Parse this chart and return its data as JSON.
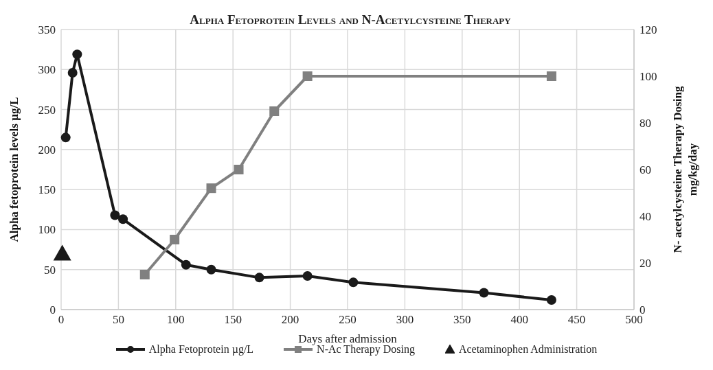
{
  "chart_data": {
    "type": "line",
    "title": "Alpha Fetoprotein Levels and N-Acetylcysteine Therapy",
    "xlabel": "Days after admission",
    "ylabel": "Alpha fetoprotein levels µg/L",
    "y2label": "N- acetylcysteine Therapy Dosing mg/kg/day",
    "xlim": [
      0,
      500
    ],
    "xticks": [
      0,
      50,
      100,
      150,
      200,
      250,
      300,
      350,
      400,
      450,
      500
    ],
    "ylim": [
      0,
      350
    ],
    "yticks": [
      0,
      50,
      100,
      150,
      200,
      250,
      300,
      350
    ],
    "y2lim": [
      0,
      120
    ],
    "y2ticks": [
      0,
      20,
      40,
      60,
      80,
      100,
      120
    ],
    "grid": true,
    "legend": "bottom",
    "line_style": "solid",
    "series": [
      {
        "name": "Alpha Fetoprotein µg/L",
        "color": "#1a1a1a",
        "marker": "circle",
        "x": [
          4,
          10,
          14,
          47,
          54,
          109,
          131,
          173,
          215,
          255,
          369,
          428
        ],
        "values": [
          215,
          296,
          319,
          118,
          113,
          56,
          50,
          40,
          42,
          34,
          21,
          12
        ]
      },
      {
        "name": "N-Ac Therapy Dosing",
        "color": "#808080",
        "marker": "square",
        "axis": "y2",
        "x": [
          73,
          99,
          131,
          155,
          186,
          215,
          428
        ],
        "values": [
          15,
          30,
          52,
          60,
          85,
          100,
          100
        ]
      },
      {
        "name": "Acetaminophen Administration",
        "type": "scatter",
        "color": "#1a1a1a",
        "marker": "triangle",
        "x": [
          1
        ],
        "values": [
          70
        ]
      }
    ]
  }
}
